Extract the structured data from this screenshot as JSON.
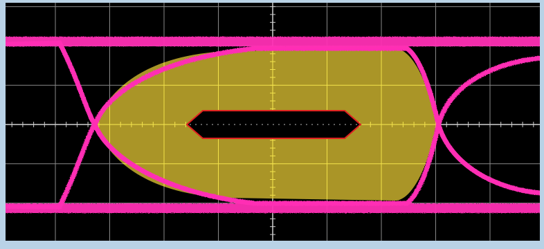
{
  "display": {
    "type": "eye-diagram",
    "graticule_divisions_x": 10,
    "graticule_divisions_y": 6,
    "colors": {
      "frame": "#b9d2e6",
      "screen": "#000000",
      "grid": "#8a8a8a",
      "trace": "#ff2fb4",
      "mask_fill": "#b8a22a",
      "mask_grid": "#f2e24a",
      "inner_mask_border": "#e02020"
    }
  }
}
